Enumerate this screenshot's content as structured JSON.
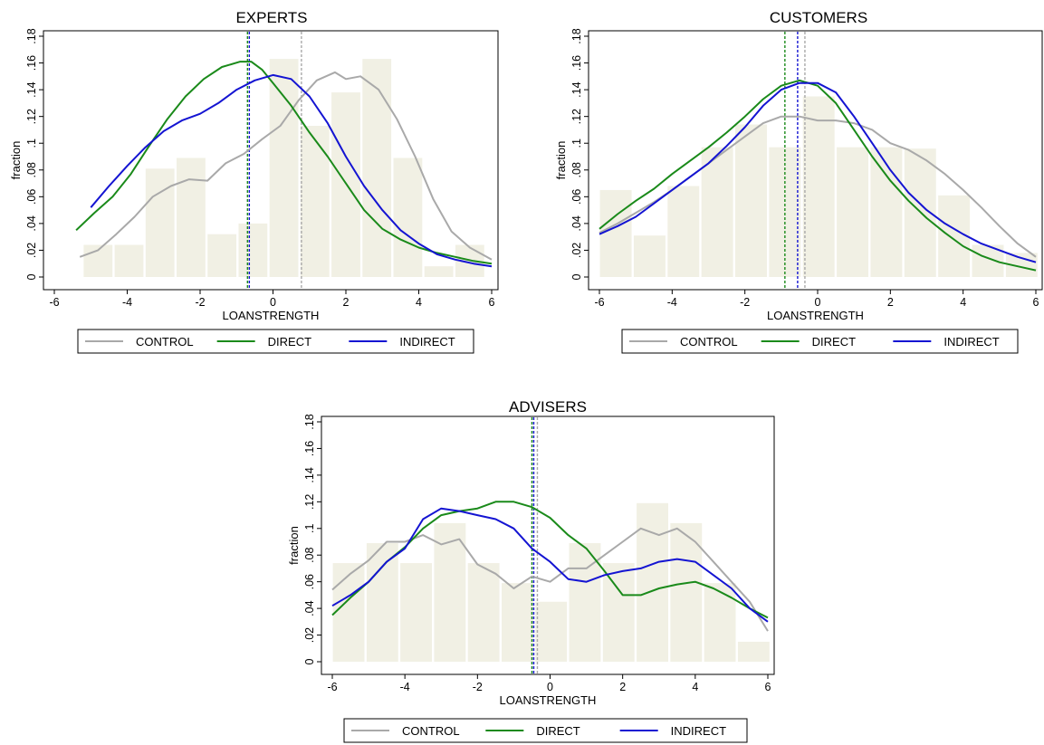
{
  "legend": {
    "items": [
      {
        "label": "CONTROL",
        "color": "#a9a9a9"
      },
      {
        "label": "DIRECT",
        "color": "#1a8a1a"
      },
      {
        "label": "INDIRECT",
        "color": "#1414d2"
      }
    ]
  },
  "chart_data": [
    {
      "type": "bar",
      "title": "EXPERTS",
      "xlabel": "LOANSTRENGTH",
      "ylabel": "fraction",
      "xlim": [
        -6,
        6
      ],
      "ylim": [
        0,
        0.18
      ],
      "xticks": [
        "-6",
        "-4",
        "-2",
        "0",
        "2",
        "4",
        "6"
      ],
      "yticks": [
        "0",
        ".02",
        ".04",
        ".06",
        ".08",
        ".1",
        ".12",
        ".14",
        ".16",
        ".18"
      ],
      "bin_width": 0.85,
      "histogram": {
        "x": [
          -4.8,
          -3.95,
          -3.1,
          -2.25,
          -1.4,
          -0.55,
          0.3,
          1.15,
          2.0,
          2.85,
          3.7,
          4.55,
          5.4
        ],
        "values": [
          0.024,
          0.024,
          0.081,
          0.089,
          0.032,
          0.04,
          0.163,
          0.113,
          0.138,
          0.163,
          0.089,
          0.008,
          0.024
        ]
      },
      "series": [
        {
          "name": "CONTROL",
          "x": [
            -5.3,
            -4.8,
            -4.3,
            -3.8,
            -3.3,
            -2.8,
            -2.3,
            -1.8,
            -1.3,
            -0.8,
            -0.3,
            0.2,
            0.7,
            1.2,
            1.7,
            2.0,
            2.4,
            2.9,
            3.4,
            3.9,
            4.4,
            4.9,
            5.4,
            6.0
          ],
          "y": [
            0.015,
            0.02,
            0.032,
            0.045,
            0.06,
            0.068,
            0.073,
            0.072,
            0.085,
            0.092,
            0.103,
            0.113,
            0.132,
            0.147,
            0.153,
            0.148,
            0.15,
            0.14,
            0.118,
            0.09,
            0.058,
            0.034,
            0.022,
            0.013
          ]
        },
        {
          "name": "DIRECT",
          "x": [
            -5.4,
            -4.9,
            -4.4,
            -3.9,
            -3.4,
            -2.9,
            -2.4,
            -1.9,
            -1.4,
            -0.9,
            -0.6,
            -0.3,
            0.0,
            0.5,
            1.0,
            1.5,
            2.0,
            2.5,
            3.0,
            3.5,
            4.0,
            4.5,
            5.0,
            5.5,
            6.0
          ],
          "y": [
            0.035,
            0.048,
            0.06,
            0.077,
            0.098,
            0.118,
            0.135,
            0.148,
            0.157,
            0.161,
            0.161,
            0.155,
            0.145,
            0.128,
            0.108,
            0.09,
            0.07,
            0.05,
            0.036,
            0.028,
            0.022,
            0.018,
            0.015,
            0.012,
            0.01
          ]
        },
        {
          "name": "INDIRECT",
          "x": [
            -5.0,
            -4.5,
            -4.0,
            -3.5,
            -3.0,
            -2.5,
            -2.0,
            -1.5,
            -1.0,
            -0.5,
            0.0,
            0.5,
            1.0,
            1.5,
            2.0,
            2.5,
            3.0,
            3.5,
            4.0,
            4.5,
            5.0,
            5.5,
            6.0
          ],
          "y": [
            0.052,
            0.068,
            0.083,
            0.097,
            0.109,
            0.117,
            0.122,
            0.13,
            0.14,
            0.147,
            0.151,
            0.148,
            0.135,
            0.115,
            0.09,
            0.068,
            0.05,
            0.035,
            0.025,
            0.017,
            0.013,
            0.01,
            0.008
          ]
        }
      ],
      "vlines": [
        {
          "series": "CONTROL",
          "x": 0.78
        },
        {
          "series": "DIRECT",
          "x": -0.7
        },
        {
          "series": "INDIRECT",
          "x": -0.65
        }
      ]
    },
    {
      "type": "bar",
      "title": "CUSTOMERS",
      "xlabel": "LOANSTRENGTH",
      "ylabel": "fraction",
      "xlim": [
        -6,
        6
      ],
      "ylim": [
        0,
        0.18
      ],
      "xticks": [
        "-6",
        "-4",
        "-2",
        "0",
        "2",
        "4",
        "6"
      ],
      "yticks": [
        "0",
        ".02",
        ".04",
        ".06",
        ".08",
        ".1",
        ".12",
        ".14",
        ".16",
        ".18"
      ],
      "bin_width": 0.93,
      "histogram": {
        "x": [
          -5.55,
          -4.62,
          -3.69,
          -2.76,
          -1.83,
          -0.9,
          0.03,
          0.96,
          1.89,
          2.82,
          3.75,
          4.68,
          5.61
        ],
        "values": [
          0.065,
          0.031,
          0.068,
          0.097,
          0.114,
          0.097,
          0.135,
          0.097,
          0.097,
          0.096,
          0.061,
          0.024,
          0.018
        ]
      },
      "series": [
        {
          "name": "CONTROL",
          "x": [
            -6.0,
            -5.5,
            -5.0,
            -4.5,
            -4.0,
            -3.5,
            -3.0,
            -2.5,
            -2.0,
            -1.5,
            -1.0,
            -0.5,
            0.0,
            0.5,
            1.0,
            1.5,
            2.0,
            2.5,
            3.0,
            3.5,
            4.0,
            4.5,
            5.0,
            5.5,
            6.0
          ],
          "y": [
            0.033,
            0.04,
            0.048,
            0.056,
            0.065,
            0.075,
            0.085,
            0.095,
            0.105,
            0.115,
            0.12,
            0.12,
            0.117,
            0.117,
            0.115,
            0.11,
            0.1,
            0.095,
            0.087,
            0.077,
            0.065,
            0.052,
            0.038,
            0.025,
            0.015
          ]
        },
        {
          "name": "DIRECT",
          "x": [
            -6.0,
            -5.5,
            -5.0,
            -4.5,
            -4.0,
            -3.5,
            -3.0,
            -2.5,
            -2.0,
            -1.5,
            -1.0,
            -0.5,
            0.0,
            0.5,
            1.0,
            1.5,
            2.0,
            2.5,
            3.0,
            3.5,
            4.0,
            4.5,
            5.0,
            5.5,
            6.0
          ],
          "y": [
            0.036,
            0.047,
            0.057,
            0.066,
            0.077,
            0.087,
            0.097,
            0.108,
            0.12,
            0.133,
            0.143,
            0.147,
            0.143,
            0.13,
            0.11,
            0.09,
            0.072,
            0.057,
            0.044,
            0.033,
            0.023,
            0.016,
            0.011,
            0.008,
            0.005
          ]
        },
        {
          "name": "INDIRECT",
          "x": [
            -6.0,
            -5.5,
            -5.0,
            -4.5,
            -4.0,
            -3.5,
            -3.0,
            -2.5,
            -2.0,
            -1.5,
            -1.0,
            -0.5,
            0.0,
            0.5,
            1.0,
            1.5,
            2.0,
            2.5,
            3.0,
            3.5,
            4.0,
            4.5,
            5.0,
            5.5,
            6.0
          ],
          "y": [
            0.032,
            0.038,
            0.045,
            0.055,
            0.065,
            0.075,
            0.085,
            0.098,
            0.112,
            0.128,
            0.14,
            0.145,
            0.145,
            0.138,
            0.12,
            0.1,
            0.08,
            0.063,
            0.05,
            0.04,
            0.032,
            0.025,
            0.02,
            0.015,
            0.011
          ]
        }
      ],
      "vlines": [
        {
          "series": "CONTROL",
          "x": -0.35
        },
        {
          "series": "DIRECT",
          "x": -0.9
        },
        {
          "series": "INDIRECT",
          "x": -0.55
        }
      ]
    },
    {
      "type": "bar",
      "title": "ADVISERS",
      "xlabel": "LOANSTRENGTH",
      "ylabel": "fraction",
      "xlim": [
        -6,
        6
      ],
      "ylim": [
        0,
        0.18
      ],
      "xticks": [
        "-6",
        "-4",
        "-2",
        "0",
        "2",
        "4",
        "6"
      ],
      "yticks": [
        "0",
        ".02",
        ".04",
        ".06",
        ".08",
        ".1",
        ".12",
        ".14",
        ".16",
        ".18"
      ],
      "bin_width": 0.93,
      "histogram": {
        "x": [
          -5.55,
          -4.62,
          -3.69,
          -2.76,
          -1.83,
          -0.9,
          0.03,
          0.96,
          1.89,
          2.82,
          3.75,
          4.68,
          5.61
        ],
        "values": [
          0.074,
          0.089,
          0.074,
          0.104,
          0.074,
          0.059,
          0.045,
          0.089,
          0.074,
          0.119,
          0.104,
          0.059,
          0.015
        ]
      },
      "series": [
        {
          "name": "CONTROL",
          "x": [
            -6.0,
            -5.5,
            -5.0,
            -4.5,
            -4.0,
            -3.5,
            -3.0,
            -2.5,
            -2.0,
            -1.5,
            -1.0,
            -0.5,
            0.0,
            0.5,
            1.0,
            1.5,
            2.0,
            2.5,
            3.0,
            3.5,
            4.0,
            4.5,
            5.0,
            5.5,
            6.0
          ],
          "y": [
            0.054,
            0.066,
            0.076,
            0.09,
            0.09,
            0.095,
            0.088,
            0.092,
            0.073,
            0.066,
            0.055,
            0.064,
            0.06,
            0.07,
            0.07,
            0.08,
            0.09,
            0.1,
            0.095,
            0.1,
            0.09,
            0.075,
            0.06,
            0.045,
            0.023
          ]
        },
        {
          "name": "DIRECT",
          "x": [
            -6.0,
            -5.5,
            -5.0,
            -4.5,
            -4.0,
            -3.5,
            -3.0,
            -2.5,
            -2.0,
            -1.5,
            -1.0,
            -0.5,
            0.0,
            0.5,
            1.0,
            1.5,
            2.0,
            2.5,
            3.0,
            3.5,
            4.0,
            4.5,
            5.0,
            5.5,
            6.0
          ],
          "y": [
            0.035,
            0.048,
            0.06,
            0.075,
            0.086,
            0.1,
            0.11,
            0.113,
            0.115,
            0.12,
            0.12,
            0.116,
            0.108,
            0.095,
            0.085,
            0.068,
            0.05,
            0.05,
            0.055,
            0.058,
            0.06,
            0.055,
            0.048,
            0.04,
            0.033
          ]
        },
        {
          "name": "INDIRECT",
          "x": [
            -6.0,
            -5.5,
            -5.0,
            -4.5,
            -4.0,
            -3.5,
            -3.0,
            -2.5,
            -2.0,
            -1.5,
            -1.0,
            -0.5,
            0.0,
            0.5,
            1.0,
            1.5,
            2.0,
            2.5,
            3.0,
            3.5,
            4.0,
            4.5,
            5.0,
            5.5,
            6.0
          ],
          "y": [
            0.042,
            0.05,
            0.06,
            0.075,
            0.085,
            0.107,
            0.115,
            0.113,
            0.11,
            0.107,
            0.1,
            0.085,
            0.075,
            0.062,
            0.06,
            0.065,
            0.068,
            0.07,
            0.075,
            0.077,
            0.075,
            0.065,
            0.055,
            0.04,
            0.03
          ]
        }
      ],
      "vlines": [
        {
          "series": "CONTROL",
          "x": -0.35
        },
        {
          "series": "DIRECT",
          "x": -0.5
        },
        {
          "series": "INDIRECT",
          "x": -0.45
        }
      ]
    }
  ]
}
